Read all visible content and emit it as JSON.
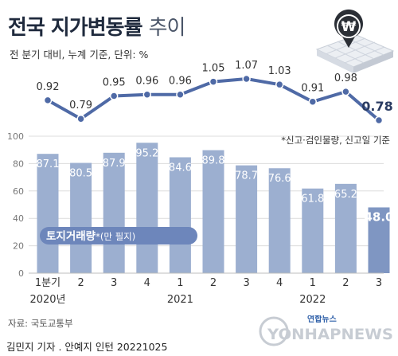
{
  "title": {
    "main": "전국 지가변동률",
    "light": "추이"
  },
  "subtitle": "전 분기 대비, 누계 기준, 단위: %",
  "source": "자료: 국토교통부",
  "credit": "김민지 기자 . 안예지 인턴 20221025",
  "footnote": "*신고·검인물량, 신고일 기준",
  "logo": {
    "brand": "연합뉴스",
    "wordmark": "YONHAPNEWS",
    "icon": "won-coin-map-icon"
  },
  "colors": {
    "line": "#4f6aa6",
    "bar": "#9cafd0",
    "bar_last": "#7f96c2",
    "grid": "#dcdcdc",
    "text": "#333333",
    "badge_bg": "#6d86bb"
  },
  "chart_data": [
    {
      "type": "line",
      "name": "land_price_change",
      "categories": [
        "1분기",
        "2",
        "3",
        "4",
        "1",
        "2",
        "3",
        "4",
        "1",
        "2",
        "3"
      ],
      "values": [
        0.92,
        0.79,
        0.95,
        0.96,
        0.96,
        1.05,
        1.07,
        1.03,
        0.91,
        0.98,
        0.78
      ],
      "value_labels": [
        "0.92",
        "0.79",
        "0.95",
        "0.96",
        "0.96",
        "1.05",
        "1.07",
        "1.03",
        "0.91",
        "0.98",
        "0.78"
      ],
      "highlight_last": true
    },
    {
      "type": "bar",
      "name": "land_transactions",
      "categories": [
        "1분기",
        "2",
        "3",
        "4",
        "1",
        "2",
        "3",
        "4",
        "1",
        "2",
        "3"
      ],
      "year_labels": [
        "2020년",
        "2021",
        "2022"
      ],
      "values": [
        87.1,
        80.5,
        87.9,
        95.2,
        84.6,
        89.8,
        78.7,
        76.6,
        61.8,
        65.2,
        48.0
      ],
      "value_labels": [
        "87.1",
        "80.5",
        "87.9",
        "95.2",
        "84.6",
        "89.8",
        "78.7",
        "76.6",
        "61.8",
        "65.2",
        "48.0"
      ],
      "ylim": [
        0,
        100
      ],
      "yticks": [
        "0",
        "20",
        "40",
        "60",
        "80",
        "100"
      ],
      "series_label": "토지거래량",
      "series_label_note": "*(만 필지)",
      "grid": true
    }
  ]
}
